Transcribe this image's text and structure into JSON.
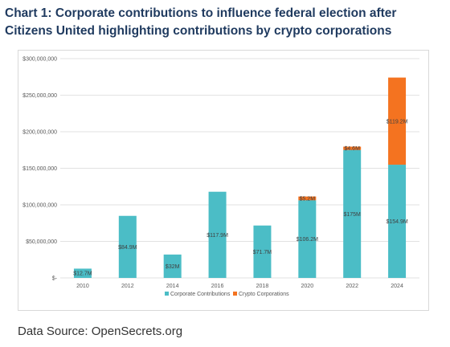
{
  "title": "Chart 1: Corporate contributions to influence federal election after Citizens United highlighting contributions by crypto corporations",
  "source": "Data Source: OpenSecrets.org",
  "colors": {
    "corporate": "#4bbdc6",
    "crypto": "#f47320",
    "grid": "#d9d9d9"
  },
  "chart_data": {
    "type": "bar",
    "stacked": true,
    "categories": [
      "2010",
      "2012",
      "2014",
      "2016",
      "2018",
      "2020",
      "2022",
      "2024"
    ],
    "ylim": [
      0,
      300000000
    ],
    "yticks": [
      0,
      50000000,
      100000000,
      150000000,
      200000000,
      250000000,
      300000000
    ],
    "ytick_labels": [
      "$-",
      "$50,000,000",
      "$100,000,000",
      "$150,000,000",
      "$200,000,000",
      "$250,000,000",
      "$300,000,000"
    ],
    "grid": true,
    "legend_position": "bottom",
    "series": [
      {
        "name": "Corporate Contributions",
        "values": [
          12700000,
          84900000,
          32000000,
          117900000,
          71700000,
          106200000,
          175000000,
          154900000
        ],
        "labels": [
          "$12.7M",
          "$84.9M",
          "$32M",
          "$117.9M",
          "$71.7M",
          "$106.2M",
          "$175M",
          "$154.9M"
        ]
      },
      {
        "name": "Crypto Corporations",
        "values": [
          0,
          0,
          0,
          0,
          0,
          5200000,
          4600000,
          119200000
        ],
        "labels": [
          "",
          "",
          "",
          "",
          "",
          "$5.2M",
          "$4.6M",
          "$119.2M"
        ]
      }
    ]
  }
}
